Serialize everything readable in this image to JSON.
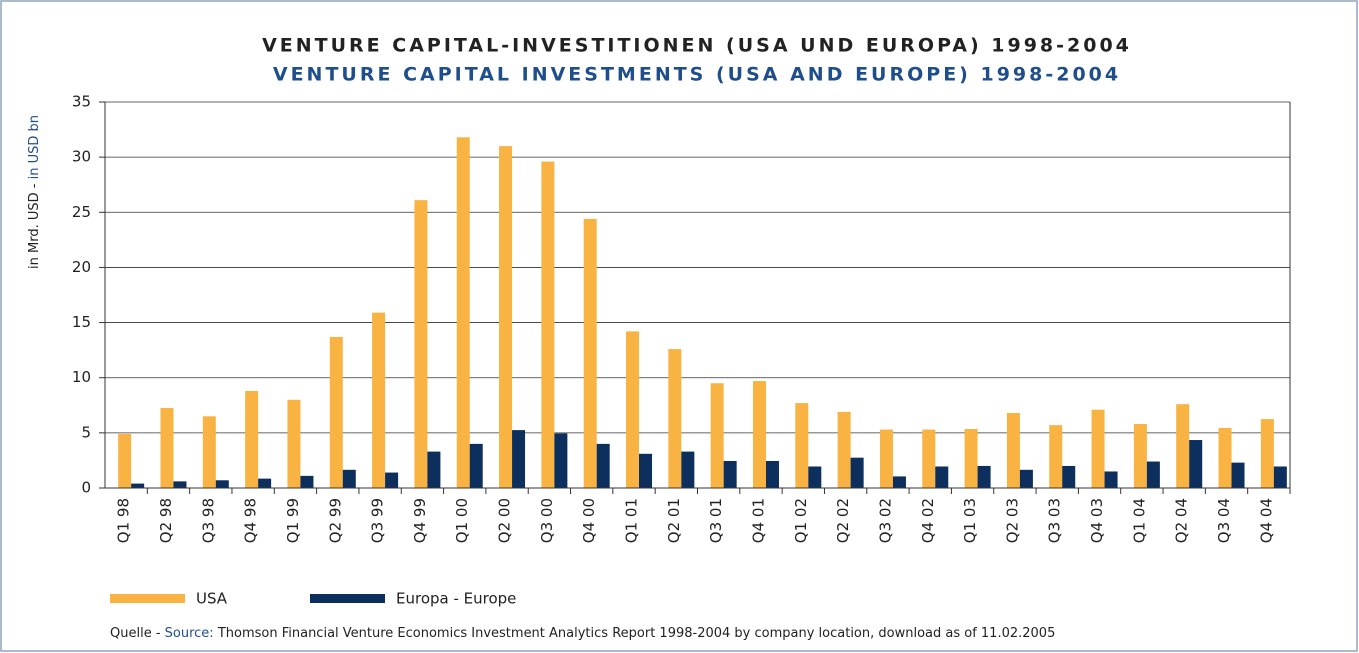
{
  "chart_data": {
    "type": "bar",
    "title": "VENTURE CAPITAL-INVESTITIONEN (USA UND EUROPA) 1998-2004",
    "subtitle": "VENTURE CAPITAL INVESTMENTS (USA AND EUROPE) 1998-2004",
    "ylabel_de": "in Mrd. USD -",
    "ylabel_en": "in USD bn",
    "source_label_de": "Quelle -",
    "source_label_en": "Source:",
    "source_text": "Thomson Financial Venture Economics Investment Analytics Report 1998-2004 by company location, download as of 11.02.2005",
    "categories": [
      "Q1 98",
      "Q2 98",
      "Q3 98",
      "Q4 98",
      "Q1 99",
      "Q2 99",
      "Q3 99",
      "Q4 99",
      "Q1 00",
      "Q2 00",
      "Q3 00",
      "Q4 00",
      "Q1 01",
      "Q2 01",
      "Q3 01",
      "Q4 01",
      "Q1 02",
      "Q2 02",
      "Q3 02",
      "Q4 02",
      "Q1 03",
      "Q2 03",
      "Q3 03",
      "Q4 03",
      "Q1 04",
      "Q2 04",
      "Q3 04",
      "Q4 04"
    ],
    "series": [
      {
        "name": "USA",
        "color": "#f9b342",
        "values": [
          4.9,
          7.25,
          6.5,
          8.8,
          8.0,
          13.7,
          15.9,
          26.1,
          31.8,
          31.0,
          29.6,
          24.4,
          14.2,
          12.6,
          9.5,
          9.7,
          7.7,
          6.9,
          5.3,
          5.3,
          5.35,
          6.8,
          5.7,
          7.1,
          5.8,
          7.6,
          5.45,
          6.25
        ]
      },
      {
        "name": "Europa - Europe",
        "color": "#0d2f5e",
        "values": [
          0.4,
          0.6,
          0.7,
          0.85,
          1.1,
          1.65,
          1.4,
          3.3,
          4.0,
          5.25,
          4.95,
          4.0,
          3.1,
          3.3,
          2.45,
          2.45,
          1.95,
          2.75,
          1.05,
          1.95,
          2.0,
          1.65,
          2.0,
          1.5,
          2.4,
          4.35,
          2.3,
          1.95
        ]
      }
    ],
    "ylim": [
      0,
      35
    ],
    "yticks": [
      0,
      5,
      10,
      15,
      20,
      25,
      30,
      35
    ],
    "grid": true,
    "legend": "bottom"
  }
}
